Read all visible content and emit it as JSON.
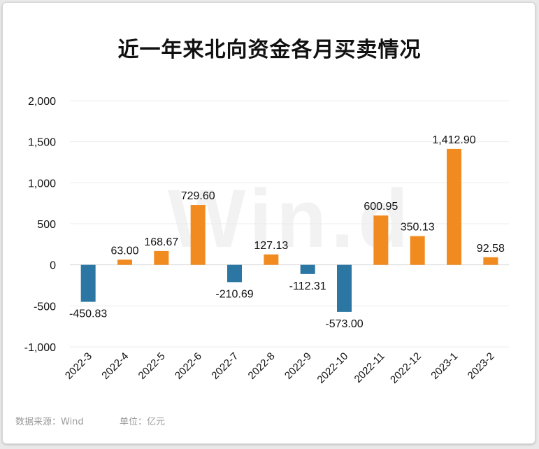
{
  "chart_data": {
    "type": "bar",
    "title": "近一年来北向资金各月买卖情况",
    "categories": [
      "2022-3",
      "2022-4",
      "2022-5",
      "2022-6",
      "2022-7",
      "2022-8",
      "2022-9",
      "2022-10",
      "2022-11",
      "2022-12",
      "2023-1",
      "2023-2"
    ],
    "values": [
      -450.83,
      63.0,
      168.67,
      729.6,
      -210.69,
      127.13,
      -112.31,
      -573.0,
      600.95,
      350.13,
      1412.9,
      92.58
    ],
    "value_labels": [
      "-450.83",
      "63.00",
      "168.67",
      "729.60",
      "-210.69",
      "127.13",
      "-112.31",
      "-573.00",
      "600.95",
      "350.13",
      "1,412.90",
      "92.58"
    ],
    "ylim": [
      -1000,
      2000
    ],
    "yticks": [
      2000,
      1500,
      1000,
      500,
      0,
      -500,
      -1000
    ],
    "ytick_labels": [
      "2,000",
      "1,500",
      "1,000",
      "500",
      "0",
      "-500",
      "-1,000"
    ],
    "xlabel": "",
    "ylabel": "",
    "grid": true,
    "colors": {
      "positive": "#f28b1f",
      "negative": "#2b76a3"
    }
  },
  "footer": {
    "source": "数据来源：Wind",
    "unit": "单位：亿元"
  },
  "watermark": "Win.d"
}
